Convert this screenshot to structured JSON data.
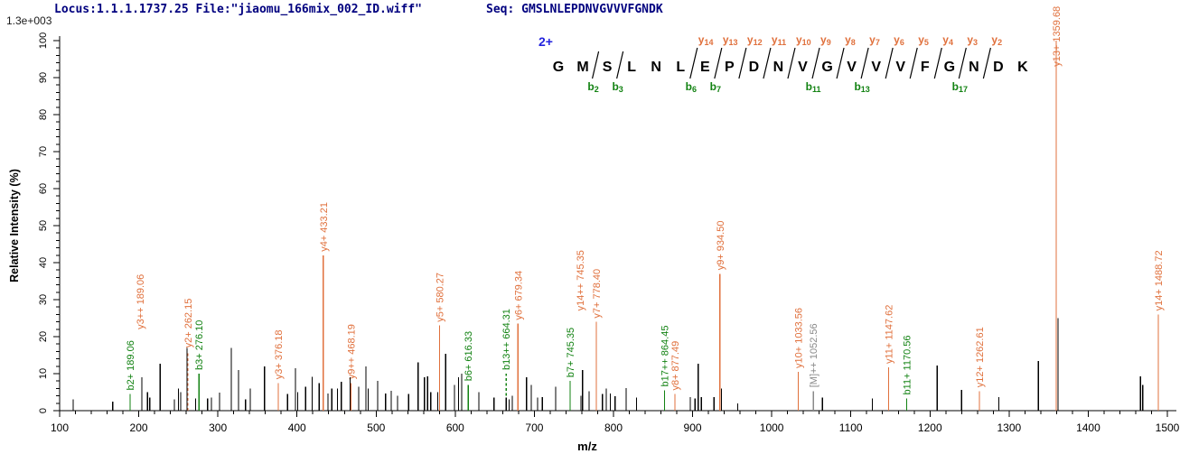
{
  "header": {
    "locus_file": "Locus:1.1.1.1737.25 File:\"jiaomu_166mix_002_ID.wiff\"",
    "seq": "Seq: GMSLNLEPDNVGVVVFGNDK"
  },
  "colors": {
    "header_text": "#00007f",
    "y_ion": "#e0703c",
    "b_ion": "#128212",
    "precursor": "#8a8a8a",
    "peak": "#000000",
    "charge_label": "#2222dd",
    "axis": "#000000"
  },
  "chart_data": {
    "type": "bar",
    "variant": "ms2-centroid-spectrum",
    "title": "",
    "xlabel": "m/z",
    "ylabel": "Relative  Intensity (%)",
    "base_peak_intensity": "1.3e+003",
    "xlim": [
      100,
      1505
    ],
    "ylim": [
      0,
      100
    ],
    "x_major_tick": 100,
    "x_minor_tick": 20,
    "y_major_tick": 10,
    "y_minor_tick": 2,
    "precursor_charge": "2+",
    "peptide": {
      "sequence": "GMSLNLEPDNVGVVVFGNDK",
      "cuts": [
        {
          "after": 2,
          "b": "b2",
          "y": null
        },
        {
          "after": 3,
          "b": "b3",
          "y": null
        },
        {
          "after": 6,
          "b": "b6",
          "y": "y14"
        },
        {
          "after": 7,
          "b": "b7",
          "y": "y13"
        },
        {
          "after": 8,
          "b": null,
          "y": "y12"
        },
        {
          "after": 9,
          "b": null,
          "y": "y11"
        },
        {
          "after": 10,
          "b": null,
          "y": "y10"
        },
        {
          "after": 11,
          "b": "b11",
          "y": "y9"
        },
        {
          "after": 12,
          "b": null,
          "y": "y8"
        },
        {
          "after": 13,
          "b": "b13",
          "y": "y7"
        },
        {
          "after": 14,
          "b": null,
          "y": "y6"
        },
        {
          "after": 15,
          "b": null,
          "y": "y5"
        },
        {
          "after": 16,
          "b": null,
          "y": "y4"
        },
        {
          "after": 17,
          "b": "b17",
          "y": "y3"
        },
        {
          "after": 18,
          "b": null,
          "y": "y2"
        }
      ]
    },
    "labeled_peaks": [
      {
        "label": "b2+ 189.06",
        "mz": 189.06,
        "h": 4.5,
        "ion": "b",
        "style": "solid"
      },
      {
        "label": "y3++ 189.06",
        "mz": 189.06,
        "h": 4.5,
        "ion": "y",
        "style": "none",
        "label_h": 21,
        "dx": 11
      },
      {
        "label": "y2+ 262.15",
        "mz": 262.15,
        "h": 16,
        "ion": "y",
        "style": "dashed"
      },
      {
        "label": "b3+ 276.10",
        "mz": 276.1,
        "h": 10,
        "ion": "b",
        "style": "solid"
      },
      {
        "label": "y3+ 376.18",
        "mz": 376.18,
        "h": 7.5,
        "ion": "y",
        "style": "solid"
      },
      {
        "label": "y4+ 433.21",
        "mz": 433.21,
        "h": 42,
        "ion": "y",
        "style": "solid"
      },
      {
        "label": "y9++ 468.19",
        "mz": 468.19,
        "h": 7.5,
        "ion": "y",
        "style": "solid"
      },
      {
        "label": "y5+ 580.27",
        "mz": 580.27,
        "h": 23,
        "ion": "y",
        "style": "solid"
      },
      {
        "label": "b6+ 616.33",
        "mz": 616.33,
        "h": 7,
        "ion": "b",
        "style": "solid"
      },
      {
        "label": "b13++ 664.31",
        "mz": 664.31,
        "h": 10,
        "ion": "b",
        "style": "dashed"
      },
      {
        "label": "y6+ 679.34",
        "mz": 679.34,
        "h": 23.5,
        "ion": "y",
        "style": "solid"
      },
      {
        "label": "b7+ 745.35",
        "mz": 745.35,
        "h": 8,
        "ion": "b",
        "style": "solid"
      },
      {
        "label": "y14++ 745.35",
        "mz": 745.35,
        "h": 8,
        "ion": "y",
        "style": "none",
        "label_h": 26,
        "dx": 11
      },
      {
        "label": "y7+ 778.40",
        "mz": 778.4,
        "h": 24,
        "ion": "y",
        "style": "solid"
      },
      {
        "label": "b17++ 864.45",
        "mz": 864.45,
        "h": 5.5,
        "ion": "b",
        "style": "solid"
      },
      {
        "label": "y8+ 877.49",
        "mz": 877.49,
        "h": 4.5,
        "ion": "y",
        "style": "solid"
      },
      {
        "label": "y9+ 934.50",
        "mz": 934.5,
        "h": 37,
        "ion": "y",
        "style": "solid"
      },
      {
        "label": "y10+ 1033.56",
        "mz": 1033.56,
        "h": 10.5,
        "ion": "y",
        "style": "solid"
      },
      {
        "label": "[M]++ 1052.56",
        "mz": 1052.56,
        "h": 5.3,
        "ion": "M",
        "style": "solid"
      },
      {
        "label": "y11+ 1147.62",
        "mz": 1147.62,
        "h": 11.7,
        "ion": "y",
        "style": "solid"
      },
      {
        "label": "b11+ 1170.56",
        "mz": 1170.56,
        "h": 3.3,
        "ion": "b",
        "style": "solid"
      },
      {
        "label": "y12+ 1262.61",
        "mz": 1262.61,
        "h": 5.3,
        "ion": "y",
        "style": "solid"
      },
      {
        "label": "y13+ 1359.68",
        "mz": 1359.68,
        "h": 100,
        "ion": "y",
        "style": "solid",
        "label_h": 92
      },
      {
        "label": "y14+ 1488.72",
        "mz": 1488.72,
        "h": 26,
        "ion": "y",
        "style": "solid"
      }
    ],
    "peaks": [
      [
        117,
        3
      ],
      [
        167,
        2.5
      ],
      [
        204,
        9
      ],
      [
        211,
        5
      ],
      [
        214,
        3.5
      ],
      [
        227,
        12.7
      ],
      [
        245,
        3
      ],
      [
        250,
        6
      ],
      [
        253,
        5
      ],
      [
        261,
        17
      ],
      [
        272,
        3.3
      ],
      [
        287,
        3.3
      ],
      [
        292,
        3.5
      ],
      [
        302,
        4.9
      ],
      [
        317,
        17
      ],
      [
        326,
        11
      ],
      [
        335,
        3
      ],
      [
        341,
        6
      ],
      [
        359,
        12
      ],
      [
        388,
        4.5
      ],
      [
        398,
        11.5
      ],
      [
        401,
        5
      ],
      [
        411,
        6.5
      ],
      [
        419,
        9.2
      ],
      [
        428,
        7.5
      ],
      [
        439,
        4.6
      ],
      [
        444,
        6
      ],
      [
        451,
        6
      ],
      [
        456,
        7.8
      ],
      [
        467,
        9
      ],
      [
        478,
        6.5
      ],
      [
        487,
        12
      ],
      [
        490,
        6
      ],
      [
        502,
        8
      ],
      [
        512,
        4.6
      ],
      [
        519,
        5.4
      ],
      [
        527,
        4
      ],
      [
        541,
        4.5
      ],
      [
        553,
        13
      ],
      [
        561,
        9
      ],
      [
        565,
        9.3
      ],
      [
        569,
        5
      ],
      [
        578,
        5
      ],
      [
        588,
        15.4
      ],
      [
        599,
        7
      ],
      [
        604,
        9
      ],
      [
        608,
        10
      ],
      [
        630,
        5
      ],
      [
        649,
        3.5
      ],
      [
        664.3,
        3.5
      ],
      [
        668,
        3
      ],
      [
        672,
        4
      ],
      [
        690,
        9
      ],
      [
        696,
        7
      ],
      [
        704,
        3.5
      ],
      [
        710,
        3.7
      ],
      [
        727,
        6.5
      ],
      [
        759,
        4
      ],
      [
        761,
        11
      ],
      [
        769,
        5.3
      ],
      [
        786,
        4.5
      ],
      [
        791,
        6
      ],
      [
        796,
        4.6
      ],
      [
        802,
        3.9
      ],
      [
        816,
        6.1
      ],
      [
        829,
        3.5
      ],
      [
        897,
        3.7
      ],
      [
        903,
        3.3
      ],
      [
        907,
        12.7
      ],
      [
        911,
        3.7
      ],
      [
        927,
        3.7
      ],
      [
        936.5,
        6
      ],
      [
        957,
        2
      ],
      [
        1064,
        3.5
      ],
      [
        1127,
        3.3
      ],
      [
        1209,
        12.2
      ],
      [
        1240,
        5.6
      ],
      [
        1287,
        3.6
      ],
      [
        1337,
        13.4
      ],
      [
        1362,
        25
      ],
      [
        1466,
        9.3
      ],
      [
        1469,
        7
      ]
    ]
  }
}
